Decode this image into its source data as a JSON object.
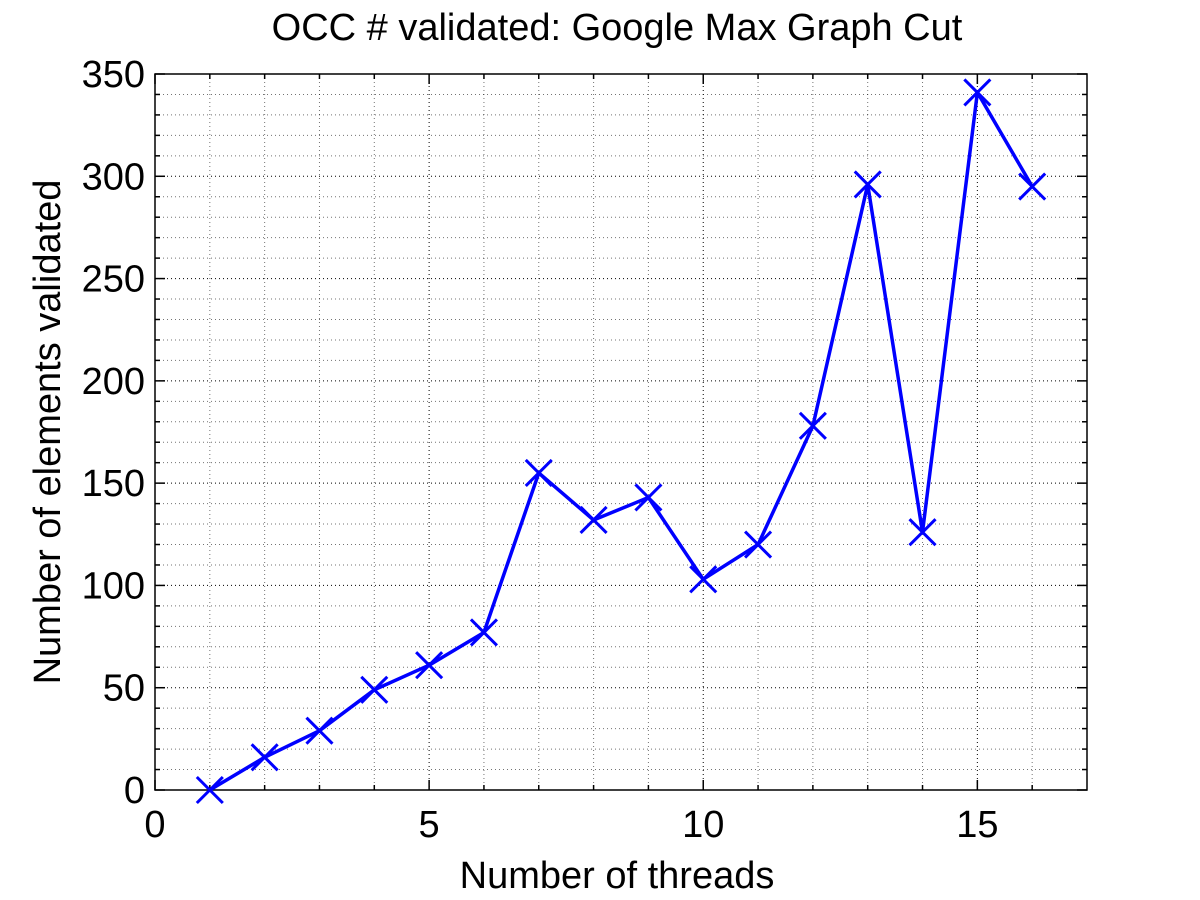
{
  "chart_data": {
    "type": "line",
    "title": "OCC # validated: Google Max Graph Cut",
    "xlabel": "Number of threads",
    "ylabel": "Number of elements validated",
    "xlim": [
      0,
      17
    ],
    "ylim": [
      0,
      350
    ],
    "xticks": [
      0,
      5,
      10,
      15
    ],
    "yticks": [
      0,
      50,
      100,
      150,
      200,
      250,
      300,
      350
    ],
    "grid": true,
    "minor_grid": true,
    "series": [
      {
        "x": [
          1,
          2,
          3,
          4,
          5,
          6,
          7,
          8,
          9,
          10,
          11,
          12,
          13,
          14,
          15,
          16
        ],
        "y": [
          0,
          16,
          29,
          49,
          61,
          77,
          155,
          132,
          143,
          103,
          120,
          178,
          296,
          126,
          341,
          295
        ],
        "color": "#0000ff",
        "marker": "x"
      }
    ]
  }
}
